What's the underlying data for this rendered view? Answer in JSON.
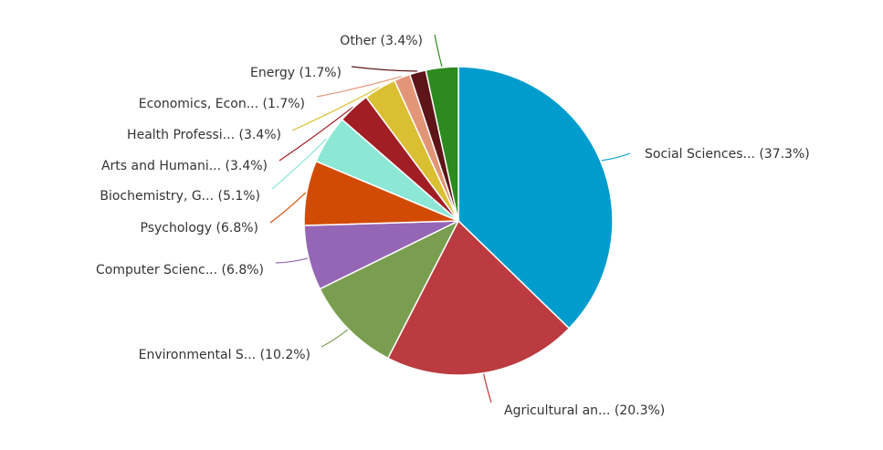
{
  "chart_data": {
    "type": "pie",
    "title": "",
    "legend": "none",
    "start_angle_deg": 0,
    "direction": "clockwise",
    "slices": [
      {
        "label": "Social Sciences... (37.3%)",
        "value": 37.3,
        "color": "#009ccd"
      },
      {
        "label": "Agricultural an... (20.3%)",
        "value": 20.3,
        "color": "#bb3b40"
      },
      {
        "label": "Environmental S... (10.2%)",
        "value": 10.2,
        "color": "#7a9e50"
      },
      {
        "label": "Computer Scienc... (6.8%)",
        "value": 6.8,
        "color": "#9566b5"
      },
      {
        "label": "Psychology (6.8%)",
        "value": 6.8,
        "color": "#d14b04"
      },
      {
        "label": "Biochemistry, G... (5.1%)",
        "value": 5.1,
        "color": "#8ce8d5"
      },
      {
        "label": "Arts and Humani... (3.4%)",
        "value": 3.4,
        "color": "#a11e25"
      },
      {
        "label": "Health Professi... (3.4%)",
        "value": 3.4,
        "color": "#dbbf33"
      },
      {
        "label": "Economics, Econ... (1.7%)",
        "value": 1.7,
        "color": "#e39577"
      },
      {
        "label": "Energy (1.7%)",
        "value": 1.7,
        "color": "#5e1518"
      },
      {
        "label": "Other (3.4%)",
        "value": 3.4,
        "color": "#2c8a1e"
      }
    ]
  }
}
